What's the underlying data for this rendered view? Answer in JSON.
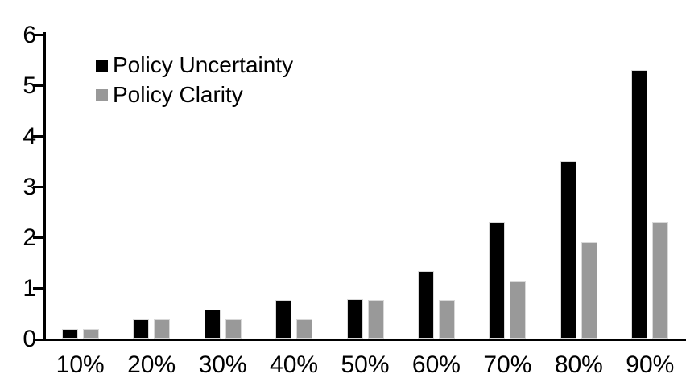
{
  "chart_data": {
    "type": "bar",
    "title": "",
    "categories": [
      "10%",
      "20%",
      "30%",
      "40%",
      "50%",
      "60%",
      "70%",
      "80%",
      "90%"
    ],
    "series": [
      {
        "name": "Policy Uncertainty",
        "color": "#000000",
        "values": [
          0.19,
          0.38,
          0.57,
          0.76,
          0.78,
          1.33,
          2.3,
          3.5,
          5.3
        ]
      },
      {
        "name": "Policy Clarity",
        "color": "#999999",
        "values": [
          0.19,
          0.38,
          0.38,
          0.38,
          0.76,
          0.76,
          1.13,
          1.9,
          2.3
        ]
      }
    ],
    "xlabel": "",
    "ylabel": "",
    "ylim": [
      0,
      6
    ],
    "ytick_labels": [
      "0",
      "1",
      "2",
      "3",
      "4",
      "5",
      "6"
    ],
    "grid": false,
    "legend_position": "top-left"
  },
  "colors": {
    "background": "#ffffff",
    "axis": "#000000",
    "bar_outline": "#d9d9d9",
    "text": "#000000"
  }
}
